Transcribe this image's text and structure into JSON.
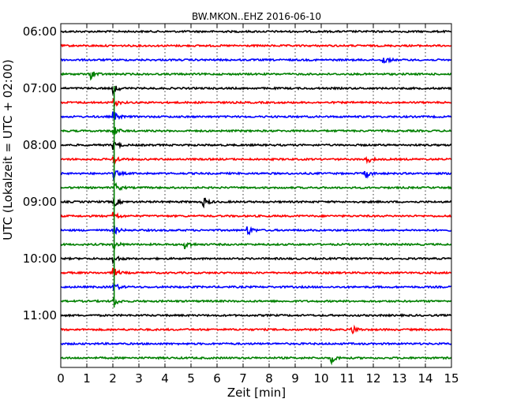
{
  "chart_data": {
    "type": "line",
    "title": "BW.MKON..EHZ 2016-06-10",
    "xlabel": "Zeit  [min]",
    "ylabel": "UTC (Lokalzeit = UTC + 02:00)",
    "xlim": [
      0,
      15
    ],
    "x_ticks": [
      0,
      1,
      2,
      3,
      4,
      5,
      6,
      7,
      8,
      9,
      10,
      11,
      12,
      13,
      14,
      15
    ],
    "x_tick_labels": [
      "0",
      "1",
      "2",
      "3",
      "4",
      "5",
      "6",
      "7",
      "8",
      "9",
      "10",
      "11",
      "12",
      "13",
      "14",
      "15"
    ],
    "y_tick_labels": [
      "06:00",
      "07:00",
      "08:00",
      "09:00",
      "10:00",
      "11:00"
    ],
    "grid": "vertical dotted lines at each minute",
    "colors": [
      "#000000",
      "#ff0000",
      "#0000ff",
      "#008000"
    ],
    "series": [
      {
        "start": "06:00",
        "color": "#000000"
      },
      {
        "start": "06:15",
        "color": "#ff0000"
      },
      {
        "start": "06:30",
        "color": "#0000ff"
      },
      {
        "start": "06:45",
        "color": "#008000"
      },
      {
        "start": "07:00",
        "color": "#000000"
      },
      {
        "start": "07:15",
        "color": "#ff0000"
      },
      {
        "start": "07:30",
        "color": "#0000ff"
      },
      {
        "start": "07:45",
        "color": "#008000"
      },
      {
        "start": "08:00",
        "color": "#000000"
      },
      {
        "start": "08:15",
        "color": "#ff0000"
      },
      {
        "start": "08:30",
        "color": "#0000ff"
      },
      {
        "start": "08:45",
        "color": "#008000"
      },
      {
        "start": "09:00",
        "color": "#000000"
      },
      {
        "start": "09:15",
        "color": "#ff0000"
      },
      {
        "start": "09:30",
        "color": "#0000ff"
      },
      {
        "start": "09:45",
        "color": "#008000"
      },
      {
        "start": "10:00",
        "color": "#000000"
      },
      {
        "start": "10:15",
        "color": "#ff0000"
      },
      {
        "start": "10:30",
        "color": "#0000ff"
      },
      {
        "start": "10:45",
        "color": "#008000"
      },
      {
        "start": "11:00",
        "color": "#000000"
      },
      {
        "start": "11:15",
        "color": "#ff0000"
      },
      {
        "start": "11:30",
        "color": "#0000ff"
      },
      {
        "start": "11:45",
        "color": "#008000"
      }
    ],
    "events": [
      {
        "start": "06:45",
        "minute": 1.2
      },
      {
        "start": "07:00",
        "minute": 2.05
      },
      {
        "start": "07:15",
        "minute": 2.05
      },
      {
        "start": "07:30",
        "minute": 2.05
      },
      {
        "start": "07:45",
        "minute": 2.05
      },
      {
        "start": "08:00",
        "minute": 2.05
      },
      {
        "start": "08:15",
        "minute": 2.05
      },
      {
        "start": "08:30",
        "minute": 2.05
      },
      {
        "start": "08:45",
        "minute": 2.1
      },
      {
        "start": "09:00",
        "minute": 2.05
      },
      {
        "start": "09:00",
        "minute": 5.5
      },
      {
        "start": "09:15",
        "minute": 2.05
      },
      {
        "start": "09:30",
        "minute": 2.05
      },
      {
        "start": "09:30",
        "minute": 7.2
      },
      {
        "start": "09:45",
        "minute": 2.05
      },
      {
        "start": "09:45",
        "minute": 4.8
      },
      {
        "start": "10:00",
        "minute": 2.05
      },
      {
        "start": "10:15",
        "minute": 2.05
      },
      {
        "start": "10:30",
        "minute": 2.05
      },
      {
        "start": "10:45",
        "minute": 2.05
      },
      {
        "start": "08:15",
        "minute": 11.75
      },
      {
        "start": "08:30",
        "minute": 11.7
      },
      {
        "start": "11:15",
        "minute": 11.2
      },
      {
        "start": "06:30",
        "minute": 12.4
      },
      {
        "start": "11:45",
        "minute": 10.4
      }
    ]
  }
}
